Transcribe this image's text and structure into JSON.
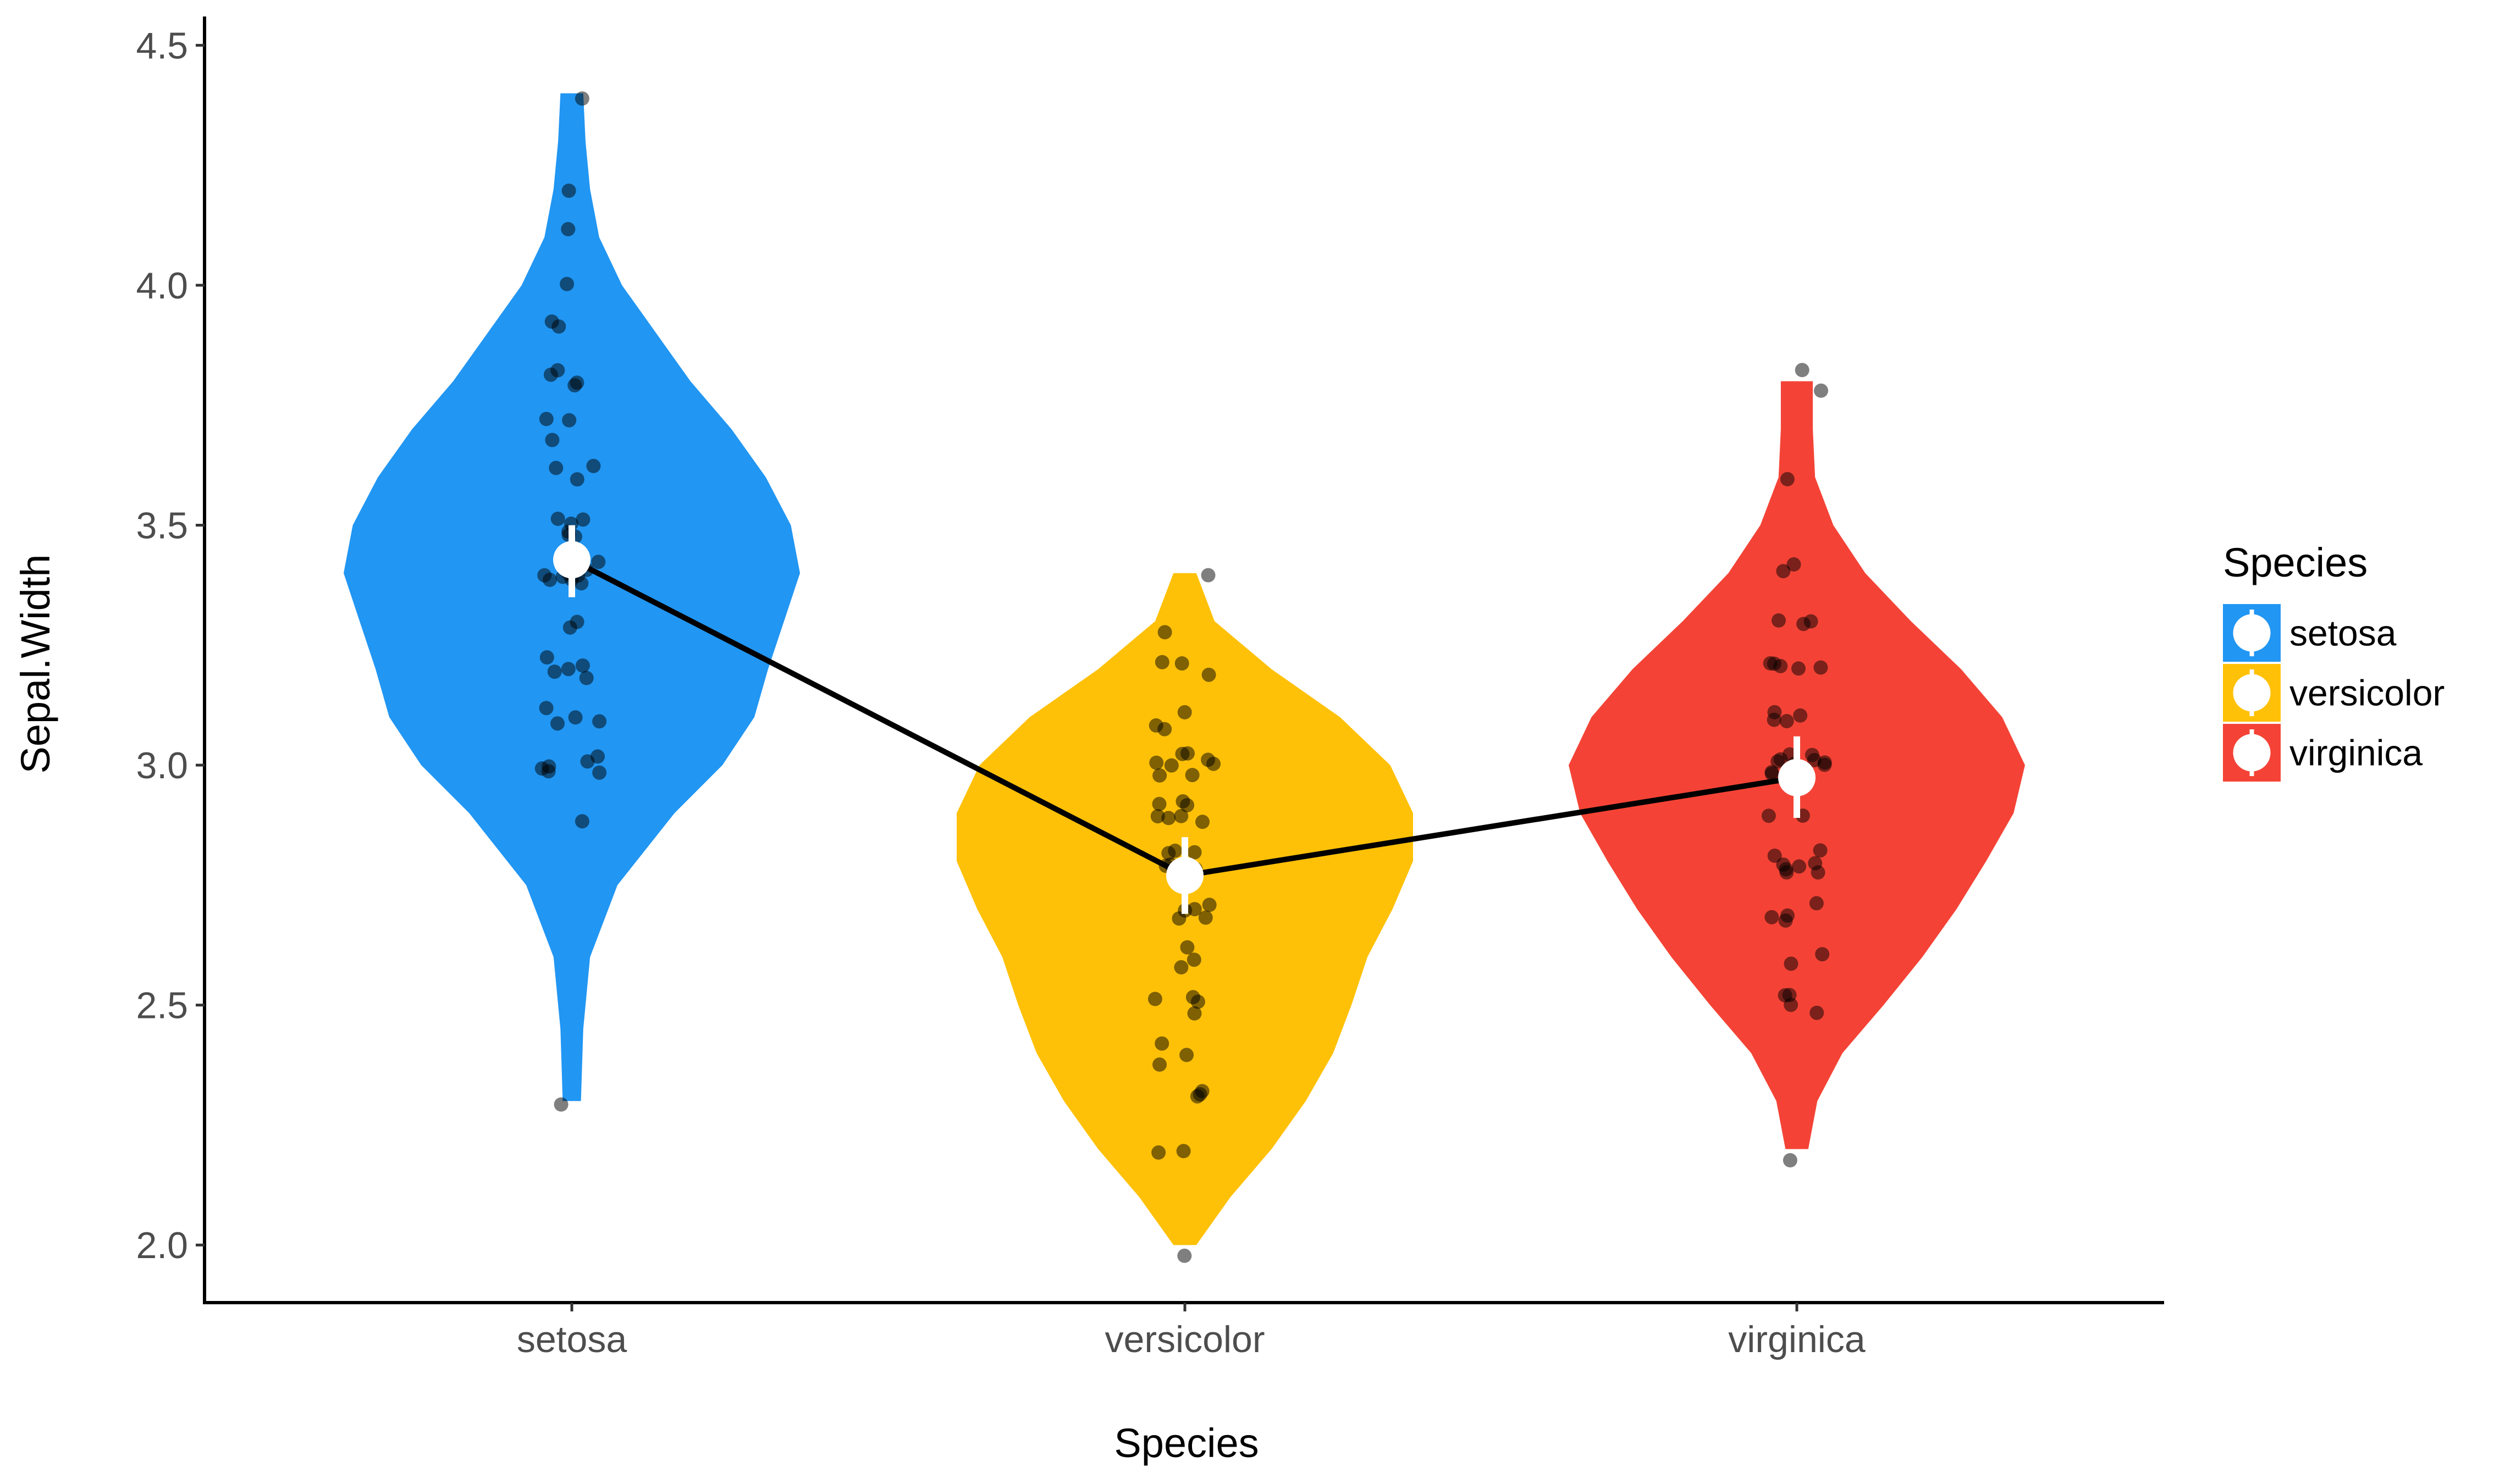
{
  "chart_data": {
    "type": "violin",
    "xlabel": "Species",
    "ylabel": "Sepal.Width",
    "categories": [
      "setosa",
      "versicolor",
      "virginica"
    ],
    "ylim": [
      1.88,
      4.56
    ],
    "yticks": [
      2.0,
      2.5,
      3.0,
      3.5,
      4.0,
      4.5
    ],
    "ytick_labels": [
      "2.0",
      "2.5",
      "3.0",
      "3.5",
      "4.0",
      "4.5"
    ],
    "grid": false,
    "legend": {
      "title": "Species",
      "position": "right",
      "entries": [
        "setosa",
        "versicolor",
        "virginica"
      ]
    },
    "colors": {
      "setosa": "#2196F3",
      "versicolor": "#FFC107",
      "virginica": "#F44336"
    },
    "series": [
      {
        "name": "setosa",
        "mean": 3.428,
        "mean_ci": [
          3.35,
          3.5
        ],
        "range": [
          2.3,
          4.4
        ],
        "density_profile": [
          [
            2.3,
            0.04
          ],
          [
            2.45,
            0.05
          ],
          [
            2.6,
            0.08
          ],
          [
            2.75,
            0.2
          ],
          [
            2.9,
            0.45
          ],
          [
            3.0,
            0.66
          ],
          [
            3.1,
            0.8
          ],
          [
            3.2,
            0.86
          ],
          [
            3.3,
            0.93
          ],
          [
            3.4,
            1.0
          ],
          [
            3.5,
            0.96
          ],
          [
            3.6,
            0.85
          ],
          [
            3.7,
            0.7
          ],
          [
            3.8,
            0.52
          ],
          [
            3.9,
            0.37
          ],
          [
            4.0,
            0.22
          ],
          [
            4.1,
            0.12
          ],
          [
            4.2,
            0.08
          ],
          [
            4.3,
            0.06
          ],
          [
            4.4,
            0.05
          ]
        ],
        "points": [
          3.5,
          3.0,
          3.2,
          3.1,
          3.6,
          3.9,
          3.4,
          3.4,
          2.9,
          3.1,
          3.7,
          3.4,
          3.0,
          3.0,
          4.0,
          4.4,
          3.9,
          3.5,
          3.8,
          3.8,
          3.4,
          3.7,
          3.6,
          3.3,
          3.4,
          3.0,
          3.4,
          3.5,
          3.4,
          3.2,
          3.1,
          3.4,
          4.1,
          4.2,
          3.1,
          3.2,
          3.5,
          3.6,
          3.0,
          3.4,
          3.5,
          2.3,
          3.2,
          3.5,
          3.8,
          3.0,
          3.8,
          3.2,
          3.7,
          3.3
        ]
      },
      {
        "name": "versicolor",
        "mean": 2.77,
        "mean_ci": [
          2.69,
          2.85
        ],
        "range": [
          2.0,
          3.4
        ],
        "density_profile": [
          [
            2.0,
            0.05
          ],
          [
            2.1,
            0.2
          ],
          [
            2.2,
            0.38
          ],
          [
            2.3,
            0.53
          ],
          [
            2.4,
            0.65
          ],
          [
            2.5,
            0.73
          ],
          [
            2.6,
            0.8
          ],
          [
            2.7,
            0.91
          ],
          [
            2.8,
            1.0
          ],
          [
            2.9,
            1.0
          ],
          [
            3.0,
            0.9
          ],
          [
            3.1,
            0.68
          ],
          [
            3.2,
            0.38
          ],
          [
            3.3,
            0.13
          ],
          [
            3.4,
            0.05
          ]
        ],
        "points": [
          3.2,
          3.2,
          3.1,
          2.3,
          2.8,
          2.8,
          3.3,
          2.4,
          2.9,
          2.7,
          2.0,
          3.0,
          2.2,
          2.9,
          2.9,
          3.1,
          3.0,
          2.7,
          2.2,
          2.5,
          3.2,
          2.8,
          2.5,
          2.8,
          2.9,
          3.0,
          2.8,
          3.0,
          2.9,
          2.6,
          2.4,
          2.4,
          2.7,
          2.7,
          3.0,
          3.4,
          3.1,
          2.3,
          3.0,
          2.5,
          2.6,
          3.0,
          2.6,
          2.3,
          2.7,
          3.0,
          2.9,
          2.9,
          2.5,
          2.8
        ]
      },
      {
        "name": "virginica",
        "mean": 2.974,
        "mean_ci": [
          2.89,
          3.06
        ],
        "range": [
          2.2,
          3.8
        ],
        "density_profile": [
          [
            2.2,
            0.05
          ],
          [
            2.3,
            0.09
          ],
          [
            2.4,
            0.2
          ],
          [
            2.5,
            0.38
          ],
          [
            2.6,
            0.55
          ],
          [
            2.7,
            0.7
          ],
          [
            2.8,
            0.83
          ],
          [
            2.9,
            0.95
          ],
          [
            3.0,
            1.0
          ],
          [
            3.1,
            0.9
          ],
          [
            3.2,
            0.72
          ],
          [
            3.3,
            0.5
          ],
          [
            3.4,
            0.3
          ],
          [
            3.5,
            0.16
          ],
          [
            3.6,
            0.08
          ],
          [
            3.7,
            0.07
          ],
          [
            3.8,
            0.07
          ]
        ],
        "points": [
          3.3,
          2.7,
          3.0,
          2.9,
          3.0,
          3.0,
          2.5,
          2.9,
          2.5,
          3.6,
          3.2,
          2.7,
          3.0,
          2.5,
          2.8,
          3.2,
          3.0,
          3.8,
          2.6,
          2.2,
          3.2,
          2.8,
          2.8,
          2.7,
          3.3,
          3.2,
          2.8,
          3.0,
          2.8,
          3.0,
          2.8,
          3.8,
          2.8,
          2.8,
          2.6,
          3.0,
          3.4,
          3.1,
          3.0,
          3.1,
          3.1,
          3.1,
          2.7,
          3.2,
          3.3,
          3.0,
          2.5,
          3.0,
          3.4,
          3.0
        ]
      }
    ]
  }
}
